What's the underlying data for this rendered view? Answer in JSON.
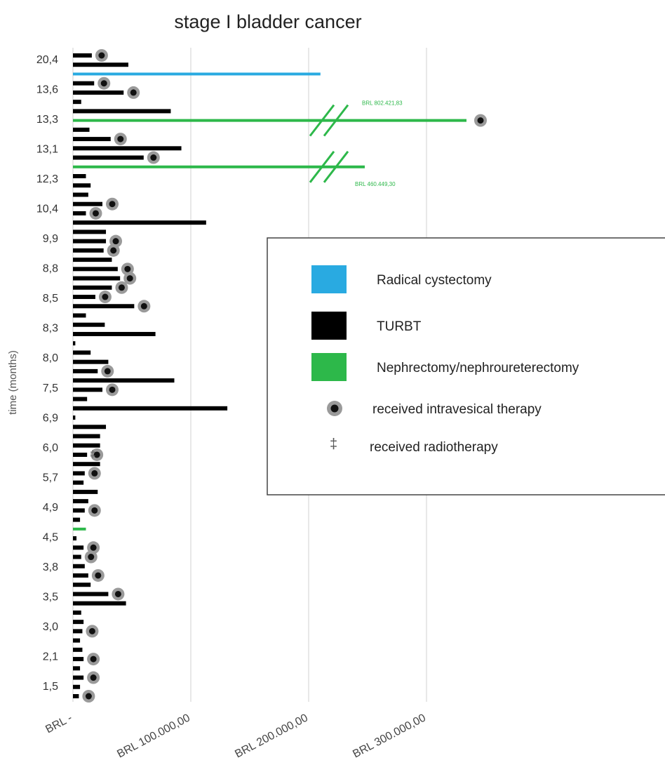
{
  "chart_data": {
    "type": "bar",
    "orientation": "horizontal",
    "title": "stage I bladder cancer",
    "ylabel": "time (months)",
    "xlabel": "",
    "xlim": [
      0,
      350000
    ],
    "grid": true,
    "x_ticks": [
      {
        "value": 0,
        "label": "BRL -"
      },
      {
        "value": 100000,
        "label": "BRL 100.000,00"
      },
      {
        "value": 200000,
        "label": "BRL 200.000,00"
      },
      {
        "value": 300000,
        "label": "BRL 300.000,00"
      }
    ],
    "y_tick_labels": [
      "20,4",
      "13,6",
      "13,3",
      "13,1",
      "12,3",
      "10,4",
      "9,9",
      "8,8",
      "8,5",
      "8,3",
      "8,0",
      "7,5",
      "6,9",
      "6,0",
      "5,7",
      "4,9",
      "4,5",
      "3,8",
      "3,5",
      "3,0",
      "2,1",
      "1,5"
    ],
    "legend_position": "right",
    "legend": [
      {
        "label": "Radical cystectomy",
        "color": "#29aae1",
        "symbol": "square"
      },
      {
        "label": "TURBT",
        "color": "#000000",
        "symbol": "square"
      },
      {
        "label": "Nephrectomy/nephroureterectomy",
        "color": "#2db84a",
        "symbol": "square"
      },
      {
        "label": "received intravesical therapy",
        "symbol": "target"
      },
      {
        "label": "received radiotherapy",
        "symbol": "dagger"
      }
    ],
    "break_annotations": [
      {
        "label": "BRL 802.421,83",
        "series": "Nephrectomy/nephroureterectomy"
      },
      {
        "label": "BRL 460.449,30",
        "series": "Nephrectomy/nephroureterectomy"
      }
    ],
    "patients": [
      {
        "cost": 16000,
        "type": "TURBT",
        "intravesical": true
      },
      {
        "cost": 47000,
        "type": "TURBT",
        "intravesical": false
      },
      {
        "cost": 210000,
        "type": "Radical cystectomy",
        "intravesical": false
      },
      {
        "cost": 18000,
        "type": "TURBT",
        "intravesical": true
      },
      {
        "cost": 43000,
        "type": "TURBT",
        "intravesical": true
      },
      {
        "cost": 7000,
        "type": "TURBT",
        "intravesical": false
      },
      {
        "cost": 83000,
        "type": "TURBT",
        "intravesical": false
      },
      {
        "cost": 802421.83,
        "type": "Nephrectomy/nephroureterectomy",
        "intravesical": true,
        "broken": true
      },
      {
        "cost": 14000,
        "type": "TURBT",
        "intravesical": false
      },
      {
        "cost": 32000,
        "type": "TURBT",
        "intravesical": true
      },
      {
        "cost": 92000,
        "type": "TURBT",
        "intravesical": false
      },
      {
        "cost": 60000,
        "type": "TURBT",
        "intravesical": true
      },
      {
        "cost": 460449.3,
        "type": "Nephrectomy/nephroureterectomy",
        "intravesical": false,
        "broken": true
      },
      {
        "cost": 11000,
        "type": "TURBT",
        "intravesical": false
      },
      {
        "cost": 15000,
        "type": "TURBT",
        "intravesical": false
      },
      {
        "cost": 13000,
        "type": "TURBT",
        "intravesical": false
      },
      {
        "cost": 25000,
        "type": "TURBT",
        "intravesical": true
      },
      {
        "cost": 11000,
        "type": "TURBT",
        "intravesical": true
      },
      {
        "cost": 113000,
        "type": "TURBT",
        "intravesical": false
      },
      {
        "cost": 28000,
        "type": "TURBT",
        "intravesical": false
      },
      {
        "cost": 28000,
        "type": "TURBT",
        "intravesical": true
      },
      {
        "cost": 26000,
        "type": "TURBT",
        "intravesical": true
      },
      {
        "cost": 33000,
        "type": "TURBT",
        "intravesical": false
      },
      {
        "cost": 38000,
        "type": "TURBT",
        "intravesical": true
      },
      {
        "cost": 40000,
        "type": "TURBT",
        "intravesical": true
      },
      {
        "cost": 33000,
        "type": "TURBT",
        "intravesical": true
      },
      {
        "cost": 19000,
        "type": "TURBT",
        "intravesical": true
      },
      {
        "cost": 52000,
        "type": "TURBT",
        "intravesical": true
      },
      {
        "cost": 11000,
        "type": "TURBT",
        "intravesical": false
      },
      {
        "cost": 27000,
        "type": "TURBT",
        "intravesical": false
      },
      {
        "cost": 70000,
        "type": "TURBT",
        "intravesical": false
      },
      {
        "cost": 2000,
        "type": "TURBT",
        "intravesical": false
      },
      {
        "cost": 15000,
        "type": "TURBT",
        "intravesical": false
      },
      {
        "cost": 30000,
        "type": "TURBT",
        "intravesical": false
      },
      {
        "cost": 21000,
        "type": "TURBT",
        "intravesical": true
      },
      {
        "cost": 86000,
        "type": "TURBT",
        "intravesical": false
      },
      {
        "cost": 25000,
        "type": "TURBT",
        "intravesical": true
      },
      {
        "cost": 12000,
        "type": "TURBT",
        "intravesical": false
      },
      {
        "cost": 131000,
        "type": "TURBT",
        "intravesical": false
      },
      {
        "cost": 2000,
        "type": "TURBT",
        "intravesical": false
      },
      {
        "cost": 28000,
        "type": "TURBT",
        "intravesical": false
      },
      {
        "cost": 23000,
        "type": "TURBT",
        "intravesical": false
      },
      {
        "cost": 23000,
        "type": "TURBT",
        "intravesical": false
      },
      {
        "cost": 12000,
        "type": "TURBT",
        "intravesical": true,
        "radiotherapy": true
      },
      {
        "cost": 23000,
        "type": "TURBT",
        "intravesical": false
      },
      {
        "cost": 10000,
        "type": "TURBT",
        "intravesical": true
      },
      {
        "cost": 9000,
        "type": "TURBT",
        "intravesical": false
      },
      {
        "cost": 21000,
        "type": "TURBT",
        "intravesical": false
      },
      {
        "cost": 13000,
        "type": "TURBT",
        "intravesical": false
      },
      {
        "cost": 10000,
        "type": "TURBT",
        "intravesical": true
      },
      {
        "cost": 6000,
        "type": "TURBT",
        "intravesical": false
      },
      {
        "cost": 11000,
        "type": "Nephrectomy/nephroureterectomy",
        "intravesical": false
      },
      {
        "cost": 3000,
        "type": "TURBT",
        "intravesical": false
      },
      {
        "cost": 9000,
        "type": "TURBT",
        "intravesical": true
      },
      {
        "cost": 7000,
        "type": "TURBT",
        "intravesical": true
      },
      {
        "cost": 10000,
        "type": "TURBT",
        "intravesical": false
      },
      {
        "cost": 13000,
        "type": "TURBT",
        "intravesical": true
      },
      {
        "cost": 15000,
        "type": "TURBT",
        "intravesical": false
      },
      {
        "cost": 30000,
        "type": "TURBT",
        "intravesical": true
      },
      {
        "cost": 45000,
        "type": "TURBT",
        "intravesical": false
      },
      {
        "cost": 7000,
        "type": "TURBT",
        "intravesical": false
      },
      {
        "cost": 9000,
        "type": "TURBT",
        "intravesical": false
      },
      {
        "cost": 8000,
        "type": "TURBT",
        "intravesical": true
      },
      {
        "cost": 6000,
        "type": "TURBT",
        "intravesical": false
      },
      {
        "cost": 8000,
        "type": "TURBT",
        "intravesical": false
      },
      {
        "cost": 9000,
        "type": "TURBT",
        "intravesical": true
      },
      {
        "cost": 6000,
        "type": "TURBT",
        "intravesical": false
      },
      {
        "cost": 9000,
        "type": "TURBT",
        "intravesical": true
      },
      {
        "cost": 6000,
        "type": "TURBT",
        "intravesical": false
      },
      {
        "cost": 5000,
        "type": "TURBT",
        "intravesical": true
      }
    ]
  }
}
